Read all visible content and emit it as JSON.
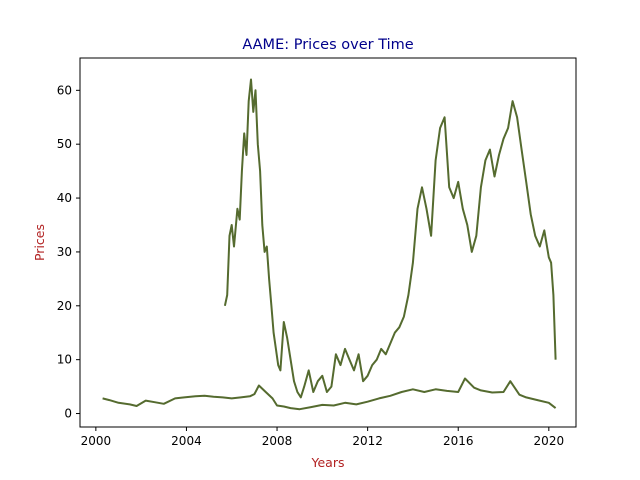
{
  "chart_data": {
    "type": "line",
    "title": "AAME: Prices over Time",
    "xlabel": "Years",
    "ylabel": "Prices",
    "title_color": "#00008b",
    "label_color": "#b22222",
    "line_color": "#556b2f",
    "xlim": [
      1999.3,
      2021.2
    ],
    "ylim": [
      -2.5,
      66
    ],
    "xticks": [
      2000,
      2004,
      2008,
      2012,
      2016,
      2020
    ],
    "yticks": [
      0,
      10,
      20,
      30,
      40,
      50,
      60
    ],
    "grid": false,
    "series": [
      {
        "x": [
          2005.7,
          2005.8,
          2005.9,
          2006.0,
          2006.1,
          2006.25,
          2006.35,
          2006.45,
          2006.55,
          2006.65,
          2006.75,
          2006.85,
          2006.95,
          2007.05,
          2007.15,
          2007.25,
          2007.35,
          2007.45,
          2007.55,
          2007.65,
          2007.75,
          2007.85,
          2007.95,
          2008.05,
          2008.15,
          2008.3,
          2008.45,
          2008.6,
          2008.75,
          2008.9,
          2009.05,
          2009.2,
          2009.4,
          2009.6,
          2009.8,
          2010.0,
          2010.2,
          2010.4,
          2010.6,
          2010.8,
          2011.0,
          2011.2,
          2011.4,
          2011.6,
          2011.8,
          2012.0,
          2012.2,
          2012.4,
          2012.6,
          2012.8,
          2013.0,
          2013.2,
          2013.4,
          2013.6,
          2013.8,
          2014.0,
          2014.2,
          2014.4,
          2014.6,
          2014.8,
          2015.0,
          2015.2,
          2015.4,
          2015.6,
          2015.8,
          2016.0,
          2016.2,
          2016.4,
          2016.6,
          2016.8,
          2017.0,
          2017.2,
          2017.4,
          2017.6,
          2017.8,
          2018.0,
          2018.2,
          2018.4,
          2018.6,
          2018.8,
          2019.0,
          2019.2,
          2019.4,
          2019.6,
          2019.8,
          2020.0,
          2020.1,
          2020.2,
          2020.3
        ],
        "values": [
          20,
          22,
          33,
          35,
          31,
          38,
          36,
          45,
          52,
          48,
          58,
          62,
          56,
          60,
          50,
          45,
          35,
          30,
          31,
          25,
          20,
          15,
          12,
          9,
          8,
          17,
          14,
          10,
          6,
          4,
          3,
          5,
          8,
          4,
          6,
          7,
          4,
          5,
          11,
          9,
          12,
          10,
          8,
          11,
          6,
          7,
          9,
          10,
          12,
          11,
          13,
          15,
          16,
          18,
          22,
          28,
          38,
          42,
          38,
          33,
          47,
          53,
          55,
          42,
          40,
          43,
          38,
          35,
          30,
          33,
          42,
          47,
          49,
          44,
          48,
          51,
          53,
          58,
          55,
          49,
          43,
          37,
          33,
          31,
          34,
          29,
          28,
          22,
          10
        ]
      },
      {
        "x": [
          2000.3,
          2000.6,
          2001.0,
          2001.5,
          2001.8,
          2002.2,
          2002.6,
          2003.0,
          2003.5,
          2003.9,
          2004.4,
          2004.8,
          2005.2,
          2005.6,
          2006.0,
          2006.4,
          2006.8,
          2007.0,
          2007.2,
          2007.5,
          2007.8,
          2008.0,
          2008.3,
          2008.6,
          2009.0,
          2009.5,
          2010.0,
          2010.5,
          2011.0,
          2011.5,
          2012.0,
          2012.5,
          2013.0,
          2013.5,
          2014.0,
          2014.5,
          2015.0,
          2015.5,
          2016.0,
          2016.3,
          2016.7,
          2017.0,
          2017.5,
          2018.0,
          2018.3,
          2018.7,
          2019.0,
          2019.5,
          2020.0,
          2020.3
        ],
        "values": [
          2.8,
          2.5,
          2.0,
          1.7,
          1.4,
          2.4,
          2.1,
          1.8,
          2.8,
          3.0,
          3.2,
          3.3,
          3.1,
          3.0,
          2.8,
          3.0,
          3.2,
          3.6,
          5.2,
          4.0,
          2.8,
          1.5,
          1.3,
          1.0,
          0.8,
          1.2,
          1.6,
          1.5,
          2.0,
          1.7,
          2.2,
          2.8,
          3.3,
          4.0,
          4.5,
          4.0,
          4.5,
          4.2,
          4.0,
          6.5,
          4.8,
          4.3,
          3.9,
          4.0,
          6.0,
          3.5,
          3.0,
          2.5,
          2.0,
          1.0
        ]
      }
    ]
  }
}
